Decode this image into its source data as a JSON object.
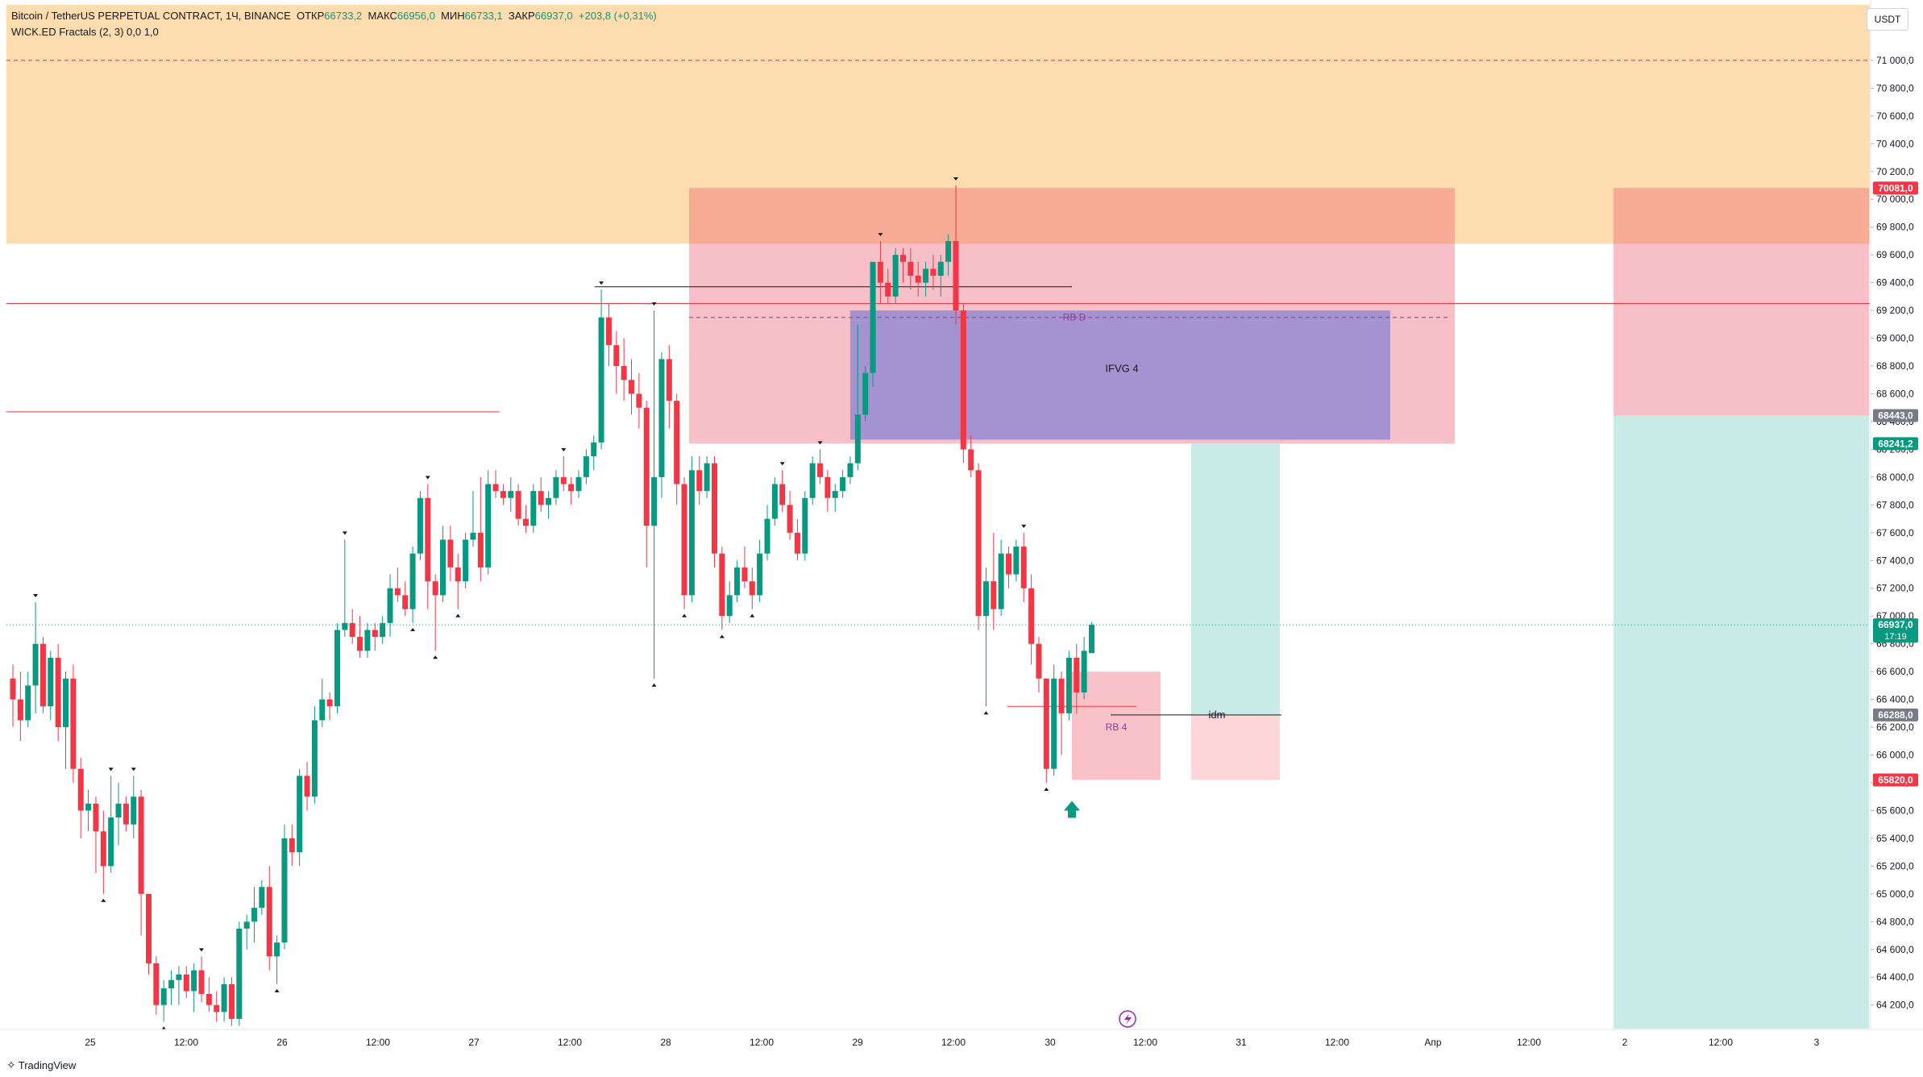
{
  "legend": {
    "symbol": "Bitcoin / TetherUS PERPETUAL CONTRACT, 1Ч, BINANCE",
    "open_label": "ОТКР",
    "open": "66733,2",
    "high_label": "МАКС",
    "high": "66956,0",
    "low_label": "МИН",
    "low": "66733,1",
    "close_label": "ЗАКР",
    "close": "66937,0",
    "change": "+203,8 (+0,31%)",
    "indicator": "WICK.ED Fractals (2, 3)  0,0  1,0"
  },
  "currency": "USDT",
  "brand": {
    "text": "TradingView"
  },
  "colors": {
    "up": "#089981",
    "down": "#F23645",
    "premium_zone": "#FDDDB0",
    "supply_zone": "#F9A88C",
    "pink_zone": "#F7C0C8",
    "ifvg_zone": "#9A8ED0",
    "target_zone": "#C9EBE6"
  },
  "annotations": {
    "rb_d": "RB D",
    "ifvg": "IFVG 4",
    "rb4": "RB 4",
    "idm": "idm"
  },
  "time_labels": [
    "25",
    "12:00",
    "26",
    "12:00",
    "27",
    "12:00",
    "28",
    "12:00",
    "29",
    "12:00",
    "30",
    "12:00",
    "31",
    "12:00",
    "Апр",
    "12:00",
    "2",
    "12:00",
    "3"
  ],
  "price_badges": [
    {
      "text": "70081,0",
      "color": "#F23645",
      "price": 70081
    },
    {
      "text": "68443,0",
      "color": "#787B86",
      "price": 68443
    },
    {
      "text": "68241,2",
      "color": "#089981",
      "price": 68241.2
    },
    {
      "text": "66937,0",
      "sub": "17:19",
      "color": "#089981",
      "price": 66937
    },
    {
      "text": "66288,0",
      "color": "#787B86",
      "price": 66288
    },
    {
      "text": "65820,0",
      "color": "#F23645",
      "price": 65820
    }
  ],
  "chart_data": {
    "type": "candlestick",
    "y_axis": {
      "min": 64030,
      "max": 71400,
      "ticks": [
        64200,
        64400,
        64600,
        64800,
        65000,
        65200,
        65400,
        65600,
        65800,
        66000,
        66200,
        66400,
        66600,
        66800,
        67000,
        67200,
        67400,
        67600,
        67800,
        68000,
        68200,
        68400,
        68600,
        68800,
        69000,
        69200,
        69400,
        69600,
        69800,
        70000,
        70200,
        70400,
        70600,
        70800,
        71000
      ]
    },
    "levels": {
      "premium_bottom": 69680,
      "red_line_top": 69250,
      "red_line_left": 68470,
      "rb_d": 69150,
      "black_high": 69370,
      "current": 66937,
      "idm": 66288
    },
    "candles": [
      [
        66550,
        66650,
        66200,
        66400
      ],
      [
        66400,
        66600,
        66100,
        66250
      ],
      [
        66250,
        66600,
        66200,
        66500
      ],
      [
        66500,
        67100,
        66300,
        66800
      ],
      [
        66800,
        66850,
        66300,
        66350
      ],
      [
        66350,
        66750,
        66250,
        66700
      ],
      [
        66700,
        66800,
        66100,
        66200
      ],
      [
        66200,
        66600,
        65900,
        66550
      ],
      [
        66550,
        66650,
        65800,
        65900
      ],
      [
        65900,
        65980,
        65400,
        65600
      ],
      [
        65600,
        65750,
        65450,
        65650
      ],
      [
        65650,
        65700,
        65150,
        65450
      ],
      [
        65450,
        65600,
        65000,
        65200
      ],
      [
        65200,
        65850,
        65150,
        65550
      ],
      [
        65550,
        65800,
        65350,
        65650
      ],
      [
        65650,
        65700,
        65450,
        65500
      ],
      [
        65500,
        65850,
        65400,
        65700
      ],
      [
        65700,
        65750,
        64700,
        65000
      ],
      [
        65000,
        65000,
        64420,
        64500
      ],
      [
        64500,
        64550,
        64130,
        64200
      ],
      [
        64200,
        64380,
        64080,
        64320
      ],
      [
        64320,
        64450,
        64200,
        64380
      ],
      [
        64380,
        64480,
        64200,
        64420
      ],
      [
        64420,
        64480,
        64250,
        64300
      ],
      [
        64300,
        64500,
        64150,
        64450
      ],
      [
        64450,
        64550,
        64220,
        64280
      ],
      [
        64280,
        64400,
        64150,
        64200
      ],
      [
        64200,
        64300,
        64080,
        64150
      ],
      [
        64150,
        64400,
        64080,
        64350
      ],
      [
        64350,
        64400,
        64050,
        64100
      ],
      [
        64100,
        64800,
        64050,
        64750
      ],
      [
        64750,
        64850,
        64600,
        64800
      ],
      [
        64800,
        65050,
        64650,
        64900
      ],
      [
        64900,
        65100,
        64850,
        65050
      ],
      [
        65050,
        65200,
        64450,
        64550
      ],
      [
        64550,
        64700,
        64350,
        64650
      ],
      [
        64650,
        65500,
        64600,
        65400
      ],
      [
        65400,
        65500,
        65200,
        65300
      ],
      [
        65300,
        65900,
        65200,
        65850
      ],
      [
        65850,
        65950,
        65600,
        65700
      ],
      [
        65700,
        66350,
        65650,
        66250
      ],
      [
        66250,
        66550,
        66200,
        66400
      ],
      [
        66400,
        66450,
        66250,
        66350
      ],
      [
        66350,
        66950,
        66300,
        66900
      ],
      [
        66900,
        67550,
        66850,
        66950
      ],
      [
        66950,
        67050,
        66800,
        66850
      ],
      [
        66850,
        67000,
        66700,
        66750
      ],
      [
        66750,
        66950,
        66700,
        66900
      ],
      [
        66900,
        66950,
        66750,
        66850
      ],
      [
        66850,
        67000,
        66800,
        66950
      ],
      [
        66950,
        67300,
        66850,
        67200
      ],
      [
        67200,
        67350,
        67100,
        67150
      ],
      [
        67150,
        67250,
        67000,
        67050
      ],
      [
        67050,
        67500,
        66950,
        67450
      ],
      [
        67450,
        67900,
        67400,
        67850
      ],
      [
        67850,
        67950,
        67050,
        67250
      ],
      [
        67250,
        67300,
        66750,
        67150
      ],
      [
        67150,
        67650,
        67100,
        67550
      ],
      [
        67550,
        67650,
        67250,
        67350
      ],
      [
        67350,
        67450,
        67050,
        67250
      ],
      [
        67250,
        67600,
        67200,
        67550
      ],
      [
        67550,
        67900,
        67500,
        67600
      ],
      [
        67600,
        68000,
        67250,
        67350
      ],
      [
        67350,
        68050,
        67300,
        67950
      ],
      [
        67950,
        68050,
        67850,
        67900
      ],
      [
        67900,
        67950,
        67800,
        67850
      ],
      [
        67850,
        68000,
        67750,
        67900
      ],
      [
        67900,
        67950,
        67650,
        67700
      ],
      [
        67700,
        67800,
        67600,
        67650
      ],
      [
        67650,
        67950,
        67600,
        67900
      ],
      [
        67900,
        68000,
        67750,
        67800
      ],
      [
        67800,
        67900,
        67700,
        67850
      ],
      [
        67850,
        68050,
        67800,
        68000
      ],
      [
        68000,
        68150,
        67900,
        67950
      ],
      [
        67950,
        68000,
        67800,
        67900
      ],
      [
        67900,
        68050,
        67850,
        68000
      ],
      [
        68000,
        68200,
        67950,
        68150
      ],
      [
        68150,
        68300,
        68050,
        68250
      ],
      [
        68250,
        69350,
        68200,
        69150
      ],
      [
        69150,
        69250,
        68800,
        68950
      ],
      [
        68950,
        69050,
        68600,
        68800
      ],
      [
        68800,
        69000,
        68550,
        68700
      ],
      [
        68700,
        68850,
        68450,
        68600
      ],
      [
        68600,
        68750,
        68350,
        68500
      ],
      [
        68500,
        68550,
        67350,
        67650
      ],
      [
        67650,
        69200,
        66550,
        68000
      ],
      [
        68000,
        68900,
        67850,
        68850
      ],
      [
        68850,
        68950,
        68350,
        68550
      ],
      [
        68550,
        68600,
        67800,
        67950
      ],
      [
        67950,
        68000,
        67050,
        67150
      ],
      [
        67150,
        68150,
        67100,
        68050
      ],
      [
        68050,
        68150,
        67800,
        67900
      ],
      [
        67900,
        68150,
        67850,
        68100
      ],
      [
        68100,
        68150,
        67350,
        67450
      ],
      [
        67450,
        67500,
        66900,
        67000
      ],
      [
        67000,
        67250,
        66950,
        67150
      ],
      [
        67150,
        67400,
        67100,
        67350
      ],
      [
        67350,
        67500,
        67200,
        67250
      ],
      [
        67250,
        67350,
        67050,
        67150
      ],
      [
        67150,
        67550,
        67100,
        67450
      ],
      [
        67450,
        67800,
        67400,
        67700
      ],
      [
        67700,
        68000,
        67650,
        67950
      ],
      [
        67950,
        68050,
        67750,
        67800
      ],
      [
        67800,
        67900,
        67550,
        67600
      ],
      [
        67600,
        67700,
        67400,
        67450
      ],
      [
        67450,
        67900,
        67400,
        67850
      ],
      [
        67850,
        68150,
        67800,
        68100
      ],
      [
        68100,
        68200,
        67950,
        68000
      ],
      [
        68000,
        68050,
        67750,
        67850
      ],
      [
        67850,
        67950,
        67750,
        67900
      ],
      [
        67900,
        68050,
        67850,
        68000
      ],
      [
        68000,
        68150,
        67950,
        68100
      ],
      [
        68100,
        69100,
        68050,
        68450
      ],
      [
        68450,
        68800,
        68400,
        68750
      ],
      [
        68750,
        69550,
        68650,
        69550
      ],
      [
        69550,
        69700,
        69250,
        69400
      ],
      [
        69400,
        69500,
        69250,
        69300
      ],
      [
        69300,
        69650,
        69250,
        69600
      ],
      [
        69600,
        69650,
        69400,
        69550
      ],
      [
        69550,
        69650,
        69350,
        69450
      ],
      [
        69450,
        69550,
        69300,
        69400
      ],
      [
        69400,
        69550,
        69300,
        69500
      ],
      [
        69500,
        69600,
        69350,
        69450
      ],
      [
        69450,
        69600,
        69300,
        69550
      ],
      [
        69550,
        69750,
        69450,
        69700
      ],
      [
        69700,
        70100,
        69100,
        69200
      ],
      [
        69200,
        69250,
        68100,
        68200
      ],
      [
        68200,
        68300,
        68000,
        68050
      ],
      [
        68050,
        68100,
        66900,
        67000
      ],
      [
        67000,
        67350,
        66350,
        67250
      ],
      [
        67250,
        67600,
        66900,
        67050
      ],
      [
        67050,
        67550,
        67000,
        67450
      ],
      [
        67450,
        67500,
        67200,
        67300
      ],
      [
        67300,
        67550,
        67250,
        67500
      ],
      [
        67500,
        67600,
        67100,
        67200
      ],
      [
        67200,
        67300,
        66650,
        66800
      ],
      [
        66800,
        66850,
        66450,
        66550
      ],
      [
        66550,
        66550,
        65800,
        65900
      ],
      [
        65900,
        66650,
        65850,
        66550
      ],
      [
        66550,
        66600,
        66000,
        66300
      ],
      [
        66300,
        66750,
        66250,
        66700
      ],
      [
        66700,
        66800,
        66300,
        66450
      ],
      [
        66450,
        66850,
        66400,
        66750
      ],
      [
        66733.2,
        66956,
        66733.1,
        66937
      ]
    ]
  }
}
